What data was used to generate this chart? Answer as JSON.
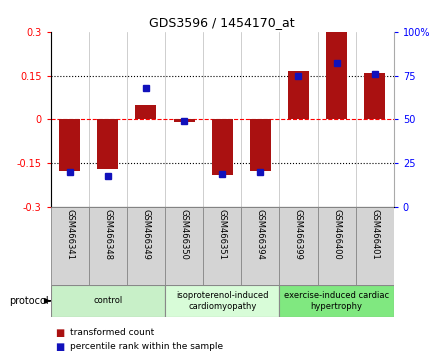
{
  "title": "GDS3596 / 1454170_at",
  "samples": [
    "GSM466341",
    "GSM466348",
    "GSM466349",
    "GSM466350",
    "GSM466351",
    "GSM466394",
    "GSM466399",
    "GSM466400",
    "GSM466401"
  ],
  "transformed_count": [
    -0.175,
    -0.17,
    0.05,
    -0.01,
    -0.19,
    -0.175,
    0.165,
    0.3,
    0.16
  ],
  "percentile_rank": [
    20,
    18,
    68,
    49,
    19,
    20,
    75,
    82,
    76
  ],
  "groups": [
    {
      "label": "control",
      "start": 0,
      "end": 3,
      "color": "#c8f0c8"
    },
    {
      "label": "isoproterenol-induced\ncardiomyopathy",
      "start": 3,
      "end": 6,
      "color": "#d8fcd8"
    },
    {
      "label": "exercise-induced cardiac\nhypertrophy",
      "start": 6,
      "end": 9,
      "color": "#80e880"
    }
  ],
  "bar_color": "#aa1111",
  "dot_color": "#1111bb",
  "ylim_left": [
    -0.3,
    0.3
  ],
  "ylim_right": [
    0,
    100
  ],
  "yticks_left": [
    -0.3,
    -0.15,
    0,
    0.15,
    0.3
  ],
  "yticks_right": [
    0,
    25,
    50,
    75,
    100
  ],
  "ytick_labels_left": [
    "-0.3",
    "-0.15",
    "0",
    "0.15",
    "0.3"
  ],
  "ytick_labels_right": [
    "0",
    "25",
    "50",
    "75",
    "100%"
  ],
  "bar_width": 0.55,
  "bg_color": "#ffffff",
  "label_bg": "#d4d4d4",
  "group_border_color": "#888888",
  "vline_color": "#bbbbbb"
}
